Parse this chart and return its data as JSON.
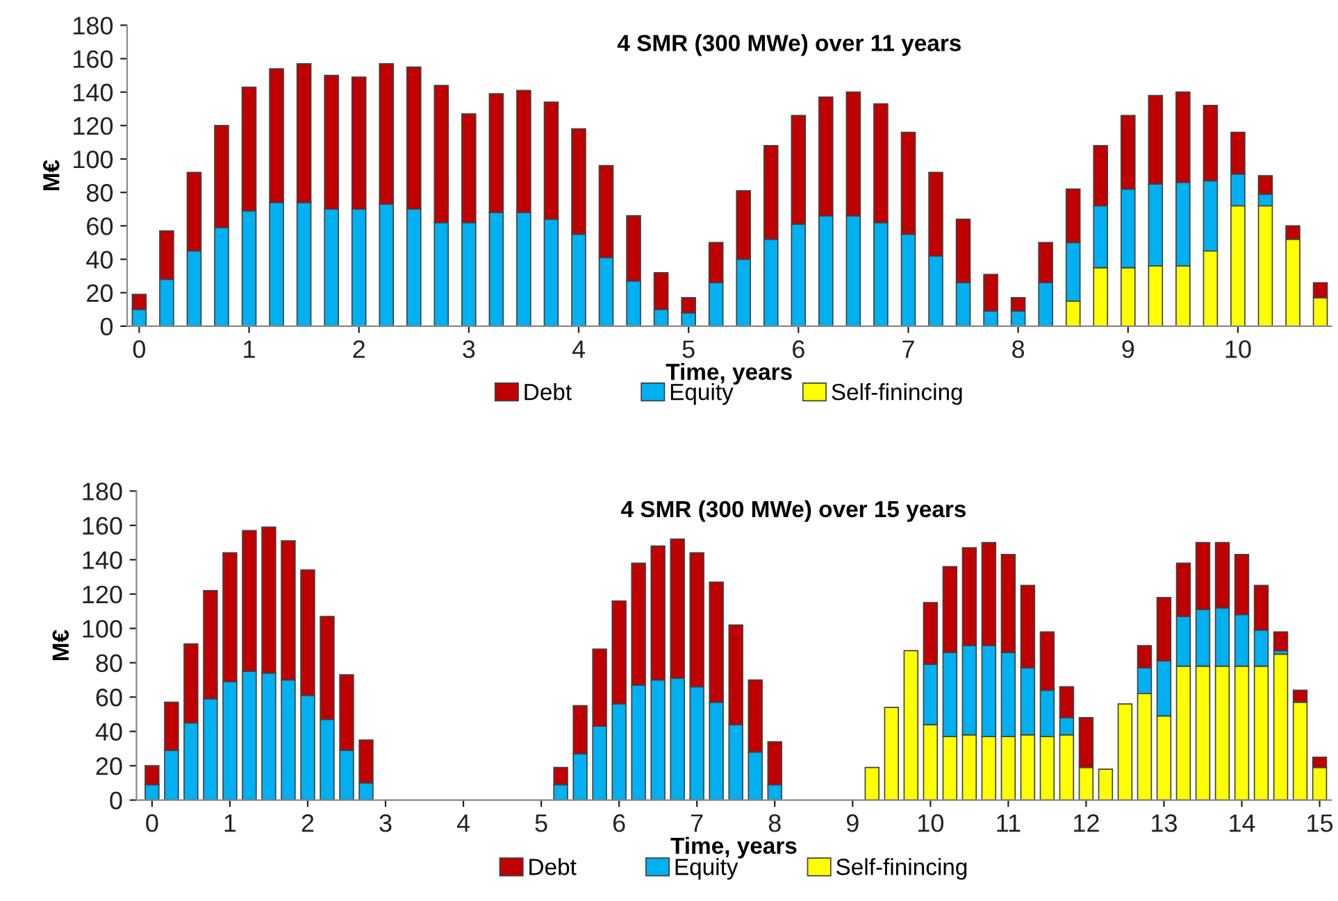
{
  "chart_data": [
    {
      "type": "bar",
      "stacked": true,
      "title": "4 SMR (300 MWe) over 11 years",
      "xlabel": "Time, years",
      "ylabel": "M€",
      "x": [
        0,
        0.25,
        0.5,
        0.75,
        1,
        1.25,
        1.5,
        1.75,
        2,
        2.25,
        2.5,
        2.75,
        3,
        3.25,
        3.5,
        3.75,
        4,
        4.25,
        4.5,
        4.75,
        5,
        5.25,
        5.5,
        5.75,
        6,
        6.25,
        6.5,
        6.75,
        7,
        7.25,
        7.5,
        7.75,
        8,
        8.25,
        8.5,
        8.75,
        9,
        9.25,
        9.5,
        9.75,
        10,
        10.25,
        10.5,
        10.75
      ],
      "series": [
        {
          "name": "Self-finincing",
          "color": "#ffff00",
          "values": [
            null,
            null,
            null,
            null,
            null,
            null,
            null,
            null,
            null,
            null,
            null,
            null,
            null,
            null,
            null,
            null,
            null,
            null,
            null,
            null,
            null,
            null,
            null,
            null,
            null,
            null,
            null,
            null,
            null,
            null,
            null,
            null,
            null,
            null,
            15,
            35,
            35,
            36,
            36,
            45,
            72,
            72,
            52,
            17
          ]
        },
        {
          "name": "Equity",
          "color": "#00b0f0",
          "values": [
            10,
            28,
            45,
            59,
            69,
            74,
            74,
            70,
            70,
            73,
            70,
            62,
            62,
            68,
            68,
            64,
            55,
            41,
            27,
            10,
            8,
            26,
            40,
            52,
            61,
            66,
            66,
            62,
            55,
            42,
            26,
            9,
            9,
            26,
            35,
            37,
            47,
            49,
            50,
            42,
            19,
            7,
            null,
            null
          ]
        },
        {
          "name": "Debt",
          "color": "#c00000",
          "values": [
            9,
            29,
            47,
            61,
            74,
            80,
            83,
            80,
            79,
            84,
            85,
            82,
            65,
            71,
            73,
            70,
            63,
            55,
            39,
            22,
            9,
            24,
            41,
            56,
            65,
            71,
            74,
            71,
            61,
            50,
            38,
            22,
            8,
            24,
            32,
            36,
            44,
            53,
            54,
            45,
            25,
            11,
            8,
            9
          ]
        }
      ],
      "xlim": [
        -0.11,
        10.85
      ],
      "ylim": [
        0,
        180
      ],
      "xticks": [
        0,
        1,
        2,
        3,
        4,
        5,
        6,
        7,
        8,
        9,
        10
      ],
      "yticks": [
        0,
        20,
        40,
        60,
        80,
        100,
        120,
        140,
        160,
        180
      ],
      "legend": "bottom",
      "grid": false
    },
    {
      "type": "bar",
      "stacked": true,
      "title": "4 SMR (300 MWe) over 15 years",
      "xlabel": "Time, years",
      "ylabel": "M€",
      "x": [
        0,
        0.25,
        0.5,
        0.75,
        1,
        1.25,
        1.5,
        1.75,
        2,
        2.25,
        2.5,
        2.75,
        3,
        3.25,
        3.5,
        3.75,
        4,
        4.25,
        4.5,
        4.75,
        5,
        5.25,
        5.5,
        5.75,
        6,
        6.25,
        6.5,
        6.75,
        7,
        7.25,
        7.5,
        7.75,
        8,
        8.25,
        8.5,
        8.75,
        9,
        9.25,
        9.5,
        9.75,
        10,
        10.25,
        10.5,
        10.75,
        11,
        11.25,
        11.5,
        11.75,
        12,
        12.25,
        12.5,
        12.75,
        13,
        13.25,
        13.5,
        13.75,
        14,
        14.25,
        14.5,
        14.75,
        15
      ],
      "series": [
        {
          "name": "Self-finincing",
          "color": "#ffff00",
          "values": [
            null,
            null,
            null,
            null,
            null,
            null,
            null,
            null,
            null,
            null,
            null,
            null,
            null,
            null,
            null,
            null,
            null,
            null,
            null,
            null,
            null,
            null,
            null,
            null,
            null,
            null,
            null,
            null,
            null,
            null,
            null,
            null,
            null,
            null,
            null,
            null,
            null,
            19,
            54,
            87,
            44,
            37,
            38,
            37,
            37,
            38,
            37,
            38,
            19,
            18,
            56,
            62,
            49,
            78,
            78,
            78,
            78,
            78,
            85,
            57,
            19
          ]
        },
        {
          "name": "Equity",
          "color": "#00b0f0",
          "values": [
            9,
            29,
            45,
            59,
            69,
            75,
            74,
            70,
            61,
            47,
            29,
            10,
            null,
            null,
            null,
            null,
            null,
            null,
            null,
            null,
            null,
            9,
            27,
            43,
            56,
            67,
            70,
            71,
            66,
            57,
            44,
            28,
            9,
            null,
            null,
            null,
            null,
            null,
            null,
            null,
            35,
            49,
            52,
            53,
            49,
            39,
            27,
            10,
            null,
            null,
            null,
            15,
            32,
            29,
            33,
            34,
            30,
            21,
            2,
            null,
            null
          ]
        },
        {
          "name": "Debt",
          "color": "#c00000",
          "values": [
            11,
            28,
            46,
            63,
            75,
            82,
            85,
            81,
            73,
            60,
            44,
            25,
            null,
            null,
            null,
            null,
            null,
            null,
            null,
            null,
            null,
            10,
            28,
            45,
            60,
            71,
            78,
            81,
            78,
            70,
            58,
            42,
            25,
            null,
            null,
            null,
            null,
            null,
            null,
            null,
            36,
            50,
            57,
            60,
            57,
            48,
            34,
            18,
            29,
            null,
            null,
            13,
            37,
            31,
            39,
            38,
            35,
            26,
            11,
            7,
            6
          ]
        }
      ],
      "xlim": [
        -0.2,
        15.15
      ],
      "ylim": [
        0,
        180
      ],
      "xticks": [
        0,
        1,
        2,
        3,
        4,
        5,
        6,
        7,
        8,
        9,
        10,
        11,
        12,
        13,
        14,
        15
      ],
      "yticks": [
        0,
        20,
        40,
        60,
        80,
        100,
        120,
        140,
        160,
        180
      ],
      "legend": "bottom",
      "grid": false
    }
  ]
}
